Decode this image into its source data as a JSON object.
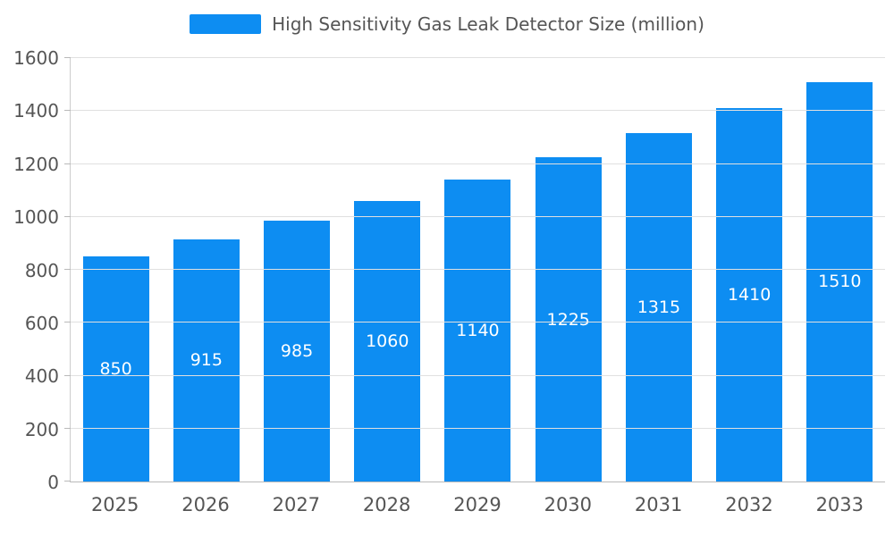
{
  "chart_data": {
    "type": "bar",
    "title": "High Sensitivity Gas Leak Detector Size (million)",
    "categories": [
      "2025",
      "2026",
      "2027",
      "2028",
      "2029",
      "2030",
      "2031",
      "2032",
      "2033"
    ],
    "values": [
      850,
      915,
      985,
      1060,
      1140,
      1225,
      1315,
      1410,
      1510
    ],
    "xlabel": "",
    "ylabel": "",
    "ylim": [
      0,
      1600
    ],
    "ytick_step": 200,
    "ytick_labels": [
      "0",
      "200",
      "400",
      "600",
      "800",
      "1000",
      "1200",
      "1400",
      "1600"
    ],
    "grid": true,
    "legend_position": "top",
    "bar_color": "#0d8df2",
    "value_label_color": "#ffffff",
    "axis_text_color": "#555555",
    "gridline_color": "#e0e0e0"
  }
}
